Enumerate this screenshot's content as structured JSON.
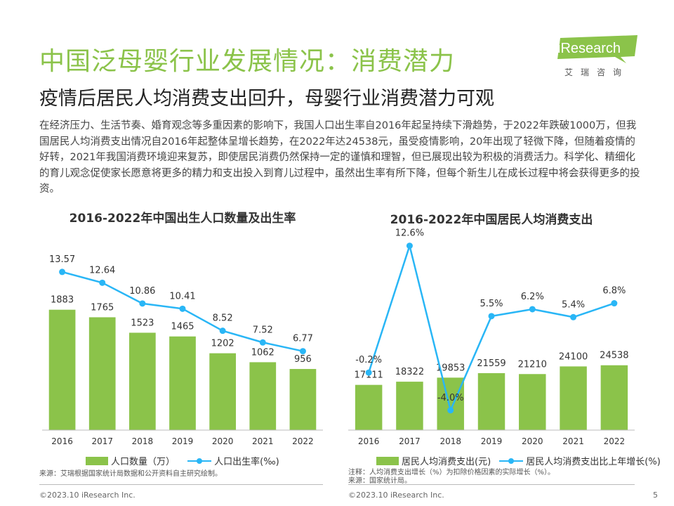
{
  "header": {
    "title": "中国泛母婴行业发展情况：消费潜力",
    "subtitle": "疫情后居民人均消费支出回升，母婴行业消费潜力可观"
  },
  "logo": {
    "text": "iResearch",
    "sub": "艾瑞咨询",
    "color": "#8bc34a"
  },
  "body_text": "在经济压力、生活节奏、婚育观念等多重因素的影响下，我国人口出生率自2016年起呈持续下滑趋势，于2022年跌破1000万，但我国居民人均消费支出情况自2016年起整体呈增长趋势，在2022年达24538元，虽受疫情影响，20年出现了轻微下降，但随着疫情的好转，2021年我国消费环境迎来复苏，即使居民消费仍然保持一定的谨慎和理智，但已展现出较为积极的消费活力。科学化、精细化的育儿观念促使家长愿意将更多的精力和支出投入到育儿过程中，虽然出生率有所下降，但每个新生儿在成长过程中将会获得更多的投资。",
  "colors": {
    "bar": "#8bc34a",
    "line": "#29b6f6",
    "title": "#8bc34a"
  },
  "chart_data": [
    {
      "type": "bar",
      "title": "2016-2022年中国出生人口数量及出生率",
      "categories": [
        "2016",
        "2017",
        "2018",
        "2019",
        "2020",
        "2021",
        "2022"
      ],
      "series": [
        {
          "name": "人口数量（万）",
          "type": "bar",
          "values": [
            1883,
            1765,
            1523,
            1465,
            1202,
            1062,
            956
          ],
          "labels": [
            "1883",
            "1765",
            "1523",
            "1465",
            "1202",
            "1062",
            "956"
          ]
        },
        {
          "name": "人口出生率(‰)",
          "type": "line",
          "values": [
            13.57,
            12.64,
            10.86,
            10.41,
            8.52,
            7.52,
            6.77
          ],
          "labels": [
            "13.57",
            "12.64",
            "10.86",
            "10.41",
            "8.52",
            "7.52",
            "6.77"
          ]
        }
      ],
      "bar_range": [
        0,
        3100
      ],
      "line_range": [
        0,
        17
      ],
      "legend": "bottom",
      "grid": false
    },
    {
      "type": "bar",
      "title": "2016-2022年中国居民人均消费支出",
      "categories": [
        "2016",
        "2017",
        "2018",
        "2019",
        "2020",
        "2021",
        "2022"
      ],
      "series": [
        {
          "name": "居民人均消费支出(元)",
          "type": "bar",
          "values": [
            17111,
            18322,
            19853,
            21559,
            21210,
            24100,
            24538
          ],
          "labels": [
            "17111",
            "18322",
            "19853",
            "21559",
            "21210",
            "24100",
            "24538"
          ]
        },
        {
          "name": "居民人均消费支出比上年增长(%)",
          "type": "line",
          "values": [
            -0.2,
            12.6,
            -4.0,
            5.5,
            6.2,
            5.4,
            6.8
          ],
          "labels": [
            "-0.2%",
            "12.6%",
            "-4.0%",
            "5.5%",
            "6.2%",
            "5.4%",
            "6.8%"
          ]
        }
      ],
      "bar_range": [
        0,
        75000
      ],
      "line_range": [
        -6,
        14
      ],
      "legend": "bottom",
      "grid": false
    }
  ],
  "notes": {
    "left": "来源：艾瑞根据国家统计局数据和公开资料自主研究绘制。",
    "right_1": "注释：人均消费支出增长（%）为扣除价格因素的实际增长（%）。",
    "right_2": "来源：国家统计局。"
  },
  "footer": {
    "copyright_left": "©2023.10 iResearch Inc.",
    "copyright_right": "©2023.10 iResearch Inc.",
    "page_number": "5"
  }
}
